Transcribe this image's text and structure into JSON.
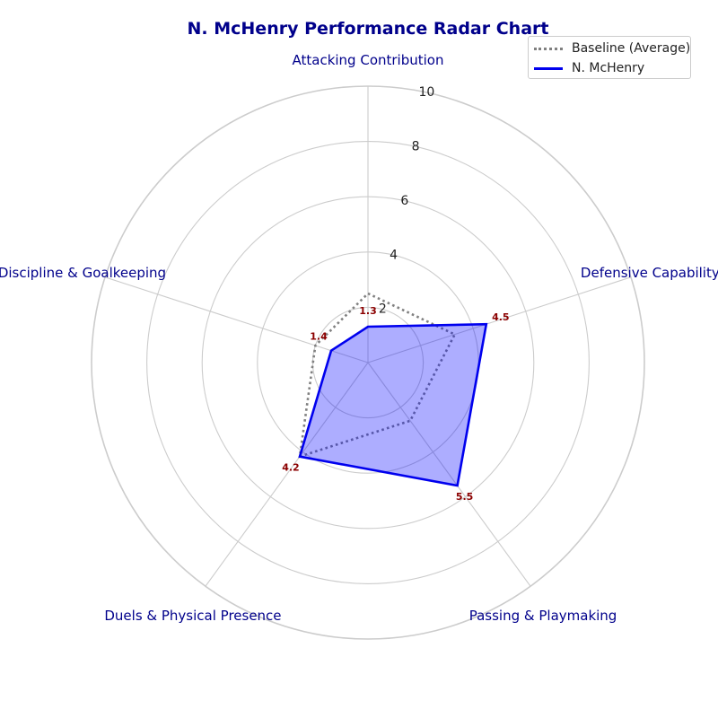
{
  "chart_data": {
    "type": "radar",
    "title": "N. McHenry Performance Radar Chart",
    "categories": [
      "Attacking Contribution",
      "Defensive Capability",
      "Passing & Playmaking",
      "Duels & Physical Presence",
      "Discipline & Goalkeeping"
    ],
    "rlim": [
      0,
      10
    ],
    "rticks": [
      2,
      4,
      6,
      8,
      10
    ],
    "series": [
      {
        "name": "Baseline (Average)",
        "values": [
          2.5,
          3.3,
          2.6,
          4.2,
          2.0
        ],
        "color": "#808080",
        "style": "dotted",
        "fill": false
      },
      {
        "name": "N. McHenry",
        "values": [
          1.3,
          4.5,
          5.5,
          4.2,
          1.4
        ],
        "color": "#0000ee",
        "style": "solid",
        "fill": true,
        "data_labels": [
          "1.3",
          "4.5",
          "5.5",
          "4.2",
          "1.4"
        ]
      }
    ],
    "grid": true,
    "legend_position": "top-right",
    "colors": {
      "title": "#00008b",
      "axis_labels": "#00008b",
      "data_labels": "#8b0000",
      "grid": "#cccccc",
      "fill": "#0000ff"
    }
  }
}
